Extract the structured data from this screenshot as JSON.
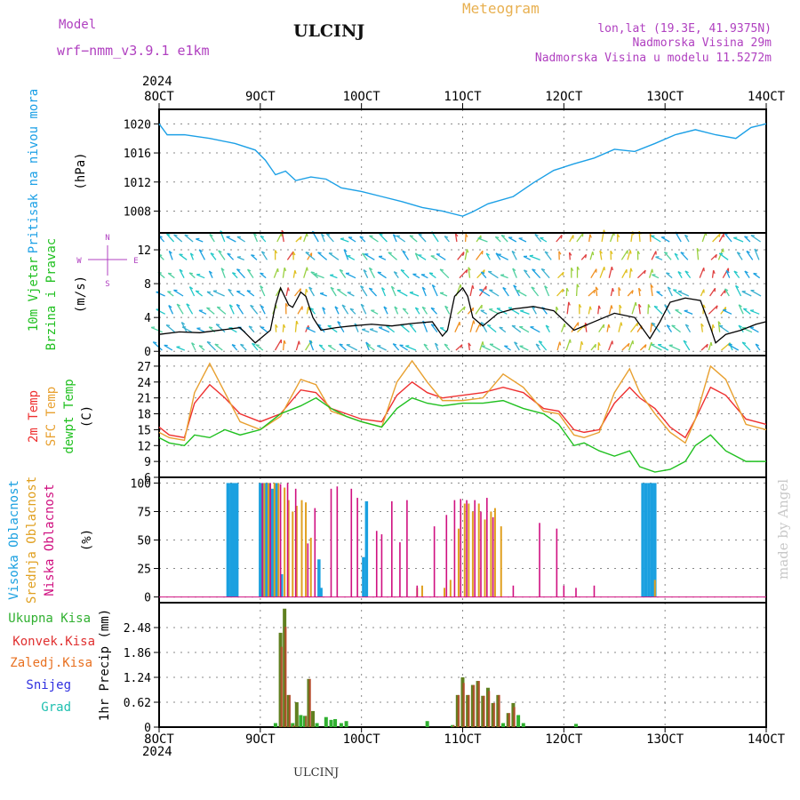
{
  "header": {
    "model_label": "Model",
    "model_name": "wrf−nmm_v3.9.1  e1km",
    "station": "ULCINJ",
    "title": "Meteogram",
    "lonlat": "lon,lat (19.3E, 41.9375N)",
    "elevation": "Nadmorska Visina 29m",
    "model_elevation": "Nadmorska Visina u modelu 11.5272m",
    "footer_station": "ULCINJ",
    "watermark": "made by Angel",
    "year_top": "2024",
    "year_bottom": "2024"
  },
  "colors": {
    "pressure": "#1ca0e6",
    "wind_speed": "#000000",
    "gust": "#ff2020",
    "temp2m": "#ee3030",
    "sfc_temp": "#e8a030",
    "dewpt": "#20c020",
    "high_cloud": "#1aa0e0",
    "mid_cloud": "#e0a020",
    "low_cloud": "#d01080",
    "precip_total": "#30b030",
    "precip_conv": "#e03030",
    "precip_frz": "#e87020",
    "snow": "#3030e0",
    "hail": "#20c0b0",
    "label_purple": "#b040c0",
    "title_orange": "#e8b050"
  },
  "chart_data": [
    {
      "type": "line",
      "name": "pressure",
      "ylabel_lines": [
        "Pritisak na nivou mora",
        "(hPa)"
      ],
      "ylim": [
        1005,
        1022
      ],
      "yticks": [
        1008,
        1012,
        1016,
        1020
      ],
      "xlim": [
        0,
        6
      ],
      "xtick_labels": [
        "8OCT",
        "9OCT",
        "10OCT",
        "11OCT",
        "12OCT",
        "13OCT",
        "14OCT"
      ],
      "grid": true,
      "series": [
        {
          "x": [
            0,
            0.08,
            0.25,
            0.5,
            0.75,
            0.95,
            1.05,
            1.15,
            1.25,
            1.35,
            1.5,
            1.65,
            1.8,
            2.0,
            2.2,
            2.4,
            2.6,
            2.8,
            3.0,
            3.1,
            3.25,
            3.5,
            3.7,
            3.9,
            4.1,
            4.3,
            4.5,
            4.7,
            4.9,
            5.1,
            5.3,
            5.5,
            5.7,
            5.85,
            6.0
          ],
          "y": [
            1020,
            1018.5,
            1018.5,
            1018,
            1017.3,
            1016.4,
            1015,
            1013,
            1013.5,
            1012.2,
            1012.7,
            1012.4,
            1011.2,
            1010.7,
            1010.0,
            1009.3,
            1008.5,
            1008.0,
            1007.3,
            1007.9,
            1009.0,
            1010.0,
            1011.9,
            1013.6,
            1014.5,
            1015.3,
            1016.5,
            1016.2,
            1017.3,
            1018.5,
            1019.2,
            1018.5,
            1018.0,
            1019.5,
            1020.0
          ]
        }
      ]
    },
    {
      "type": "line",
      "name": "wind",
      "ylabel_lines": [
        "10m Vjetar",
        "Brzina i Pravac",
        "(m/s)"
      ],
      "compass_labels": [
        "N",
        "E",
        "S",
        "W"
      ],
      "ylim": [
        -0.5,
        14
      ],
      "yticks": [
        0,
        4,
        8,
        12
      ],
      "grid": true,
      "series": [
        {
          "name": "wind_speed",
          "x": [
            0,
            0.2,
            0.4,
            0.6,
            0.8,
            0.95,
            1.1,
            1.15,
            1.2,
            1.28,
            1.32,
            1.4,
            1.45,
            1.52,
            1.6,
            1.75,
            1.9,
            2.1,
            2.3,
            2.5,
            2.7,
            2.8,
            2.85,
            2.92,
            3.0,
            3.05,
            3.1,
            3.2,
            3.35,
            3.5,
            3.7,
            3.9,
            4.1,
            4.3,
            4.5,
            4.7,
            4.85,
            4.95,
            5.05,
            5.2,
            5.35,
            5.45,
            5.5,
            5.6,
            5.75,
            5.9,
            6.0
          ],
          "y": [
            2.0,
            2.3,
            2.2,
            2.5,
            2.8,
            1.0,
            2.5,
            5.5,
            7.5,
            5.5,
            5.2,
            7.0,
            6.5,
            4.0,
            2.5,
            2.8,
            3.0,
            3.2,
            3.0,
            3.3,
            3.5,
            1.8,
            2.5,
            6.5,
            7.5,
            6.5,
            4.0,
            3.0,
            4.5,
            5.0,
            5.3,
            4.8,
            2.5,
            3.5,
            4.5,
            4.0,
            1.5,
            3.5,
            5.8,
            6.3,
            6.0,
            2.8,
            1.0,
            2.0,
            2.5,
            3.2,
            3.5
          ]
        }
      ]
    },
    {
      "type": "line",
      "name": "temperature",
      "ylabel_lines": [
        "2m Temp",
        "SFC Temp",
        "dewpt Temp",
        "(C)"
      ],
      "ylim": [
        6,
        29
      ],
      "yticks": [
        6,
        9,
        12,
        15,
        18,
        21,
        24,
        27
      ],
      "grid": true,
      "series": [
        {
          "name": "2m Temp",
          "x": [
            0,
            0.1,
            0.25,
            0.35,
            0.5,
            0.65,
            0.8,
            1.0,
            1.2,
            1.4,
            1.55,
            1.7,
            1.85,
            2.0,
            2.2,
            2.35,
            2.5,
            2.65,
            2.8,
            3.0,
            3.2,
            3.4,
            3.6,
            3.8,
            3.95,
            4.1,
            4.2,
            4.35,
            4.5,
            4.65,
            4.75,
            4.9,
            5.05,
            5.2,
            5.3,
            5.45,
            5.6,
            5.8,
            6.0
          ],
          "y": [
            15.5,
            14.0,
            13.5,
            20.0,
            23.5,
            21.0,
            18.0,
            16.5,
            18.0,
            22.5,
            22.0,
            19.0,
            18.0,
            17.0,
            16.5,
            21.5,
            24.0,
            22.0,
            21.0,
            21.5,
            22.0,
            23.0,
            22.0,
            19.0,
            18.5,
            15.0,
            14.5,
            15.0,
            20.0,
            23.0,
            21.0,
            19.0,
            15.5,
            13.5,
            17.0,
            23.0,
            21.5,
            17.0,
            16.0
          ]
        },
        {
          "name": "SFC Temp",
          "x": [
            0,
            0.1,
            0.25,
            0.35,
            0.5,
            0.65,
            0.8,
            1.0,
            1.2,
            1.4,
            1.55,
            1.7,
            1.85,
            2.0,
            2.2,
            2.35,
            2.5,
            2.65,
            2.8,
            3.0,
            3.2,
            3.4,
            3.6,
            3.8,
            3.95,
            4.1,
            4.2,
            4.35,
            4.5,
            4.65,
            4.75,
            4.9,
            5.05,
            5.2,
            5.3,
            5.45,
            5.6,
            5.8,
            6.0
          ],
          "y": [
            14.5,
            13.5,
            13.0,
            22.0,
            27.5,
            22.0,
            16.5,
            15.0,
            17.5,
            24.5,
            23.5,
            18.5,
            17.5,
            16.5,
            15.5,
            24.0,
            28.0,
            24.0,
            20.5,
            20.5,
            21.0,
            25.5,
            23.0,
            18.5,
            18.0,
            14.0,
            13.5,
            14.5,
            22.0,
            26.5,
            22.0,
            18.0,
            14.5,
            12.5,
            17.0,
            27.0,
            24.5,
            16.0,
            15.0
          ]
        },
        {
          "name": "dewpt Temp",
          "x": [
            0,
            0.1,
            0.25,
            0.35,
            0.5,
            0.65,
            0.8,
            1.0,
            1.2,
            1.4,
            1.55,
            1.7,
            1.85,
            2.0,
            2.2,
            2.35,
            2.5,
            2.65,
            2.8,
            3.0,
            3.2,
            3.4,
            3.6,
            3.8,
            3.95,
            4.1,
            4.2,
            4.35,
            4.5,
            4.65,
            4.75,
            4.9,
            5.05,
            5.2,
            5.3,
            5.45,
            5.6,
            5.8,
            6.0
          ],
          "y": [
            13.5,
            12.5,
            12.0,
            14.0,
            13.5,
            15.0,
            14.0,
            15.0,
            18.0,
            19.5,
            21.0,
            19.0,
            17.5,
            16.5,
            15.5,
            19.0,
            21.0,
            20.0,
            19.5,
            20.0,
            20.0,
            20.5,
            19.0,
            18.0,
            16.0,
            12.0,
            12.5,
            11.0,
            10.0,
            11.0,
            8.0,
            7.0,
            7.5,
            9.0,
            12.0,
            14.0,
            11.0,
            9.0,
            9.0
          ]
        }
      ]
    },
    {
      "type": "bar",
      "name": "clouds",
      "ylabel_lines": [
        "Visoka Oblacnost",
        "Srednja Oblacnost",
        "Niska Oblacnost",
        "(%)"
      ],
      "ylim": [
        -5,
        105
      ],
      "yticks": [
        0,
        25,
        50,
        75,
        100
      ],
      "grid": true,
      "series": [
        {
          "name": "Visoka Oblacnost",
          "x": [
            0.68,
            0.71,
            0.74,
            0.77,
            1.0,
            1.03,
            1.06,
            1.09,
            1.12,
            1.16,
            1.21,
            1.58,
            1.6,
            2.02,
            2.05,
            4.78,
            4.81,
            4.84,
            4.87,
            4.9
          ],
          "y": [
            100,
            100,
            100,
            100,
            100,
            100,
            100,
            100,
            95,
            100,
            20,
            33,
            8,
            35,
            84,
            100,
            100,
            100,
            100,
            100
          ]
        },
        {
          "name": "Srednja Oblacnost",
          "x": [
            1.04,
            1.08,
            1.14,
            1.18,
            1.24,
            1.28,
            1.32,
            1.36,
            1.41,
            1.45,
            1.5,
            2.55,
            2.6,
            2.82,
            2.88,
            2.96,
            3.02,
            3.06,
            3.1,
            3.16,
            3.22,
            3.28,
            3.32,
            3.38,
            4.9
          ],
          "y": [
            100,
            100,
            100,
            100,
            96,
            85,
            75,
            80,
            85,
            83,
            52,
            8,
            10,
            8,
            15,
            60,
            82,
            82,
            75,
            82,
            68,
            75,
            78,
            62,
            15
          ]
        },
        {
          "name": "Niska Oblacnost",
          "x": [
            1.02,
            1.1,
            1.2,
            1.27,
            1.35,
            1.47,
            1.54,
            1.7,
            1.76,
            1.9,
            1.96,
            2.15,
            2.2,
            2.3,
            2.38,
            2.45,
            2.55,
            2.72,
            2.84,
            2.92,
            2.98,
            3.04,
            3.12,
            3.18,
            3.24,
            3.3,
            3.5,
            3.76,
            3.93,
            4.0,
            4.12,
            4.3
          ],
          "y": [
            100,
            100,
            99,
            100,
            95,
            47,
            78,
            95,
            97,
            95,
            87,
            58,
            55,
            84,
            48,
            85,
            10,
            62,
            72,
            85,
            86,
            85,
            85,
            75,
            87,
            70,
            10,
            65,
            60,
            10,
            8,
            10
          ]
        }
      ]
    },
    {
      "type": "bar",
      "name": "precipitation",
      "ylabel_lines": [
        "1hr Precip (mm)"
      ],
      "legend": [
        "Ukupna Kisa",
        "Konvek.Kisa",
        "Zaledj.Kisa",
        "Snijeg",
        "Grad"
      ],
      "ylim": [
        0,
        3.1
      ],
      "yticks": [
        0,
        0.62,
        1.24,
        1.86,
        2.48
      ],
      "grid": true,
      "series": [
        {
          "name": "Ukupna Kisa",
          "x": [
            1.15,
            1.2,
            1.24,
            1.28,
            1.32,
            1.36,
            1.4,
            1.44,
            1.48,
            1.52,
            1.56,
            1.65,
            1.7,
            1.74,
            1.8,
            1.85,
            2.65,
            2.9,
            2.95,
            3.0,
            3.05,
            3.1,
            3.15,
            3.2,
            3.25,
            3.3,
            3.35,
            3.4,
            3.45,
            3.5,
            3.55,
            3.6,
            4.12
          ],
          "y": [
            0.1,
            2.35,
            2.95,
            0.8,
            0.1,
            0.62,
            0.3,
            0.28,
            1.2,
            0.4,
            0.1,
            0.25,
            0.18,
            0.2,
            0.1,
            0.15,
            0.15,
            0.05,
            0.8,
            1.24,
            0.8,
            1.05,
            1.15,
            0.78,
            0.98,
            0.6,
            0.8,
            0.1,
            0.35,
            0.6,
            0.3,
            0.1,
            0.08
          ]
        },
        {
          "name": "Konvek.Kisa",
          "x": [
            1.2,
            1.24,
            1.28,
            1.32,
            1.44,
            1.48,
            2.9,
            2.95,
            3.0,
            3.05,
            3.1,
            3.15,
            3.2,
            3.25,
            3.3,
            3.35,
            3.45,
            3.5
          ],
          "y": [
            2.0,
            2.5,
            0.8,
            0.05,
            0.28,
            1.2,
            0.05,
            0.8,
            1.1,
            0.8,
            1.05,
            1.15,
            0.78,
            0.9,
            0.6,
            0.8,
            0.35,
            0.5
          ]
        }
      ]
    }
  ]
}
